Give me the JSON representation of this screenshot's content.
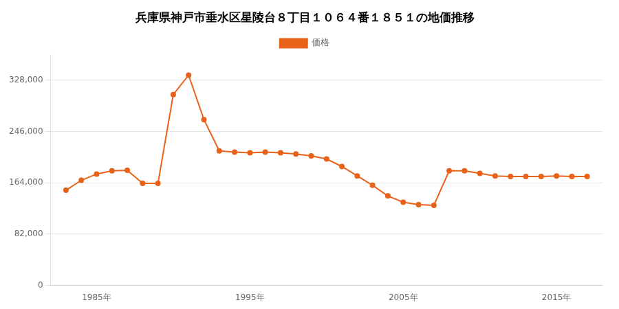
{
  "chart_data": {
    "type": "line",
    "title": "兵庫県神戸市垂水区星陵台８丁目１０６４番１８５１の地価推移",
    "x": [
      1983,
      1984,
      1985,
      1986,
      1987,
      1988,
      1989,
      1990,
      1991,
      1992,
      1993,
      1994,
      1995,
      1996,
      1997,
      1998,
      1999,
      2000,
      2001,
      2002,
      2003,
      2004,
      2005,
      2006,
      2007,
      2008,
      2009,
      2010,
      2011,
      2012,
      2013,
      2014,
      2015,
      2016,
      2017
    ],
    "series": [
      {
        "name": "価格",
        "color": "#E8621A",
        "marker": "circle",
        "values": [
          152000,
          168000,
          178000,
          183000,
          184000,
          163000,
          163000,
          305000,
          336000,
          265000,
          215000,
          213000,
          212000,
          213000,
          212000,
          210000,
          207000,
          202000,
          190000,
          175000,
          160000,
          143000,
          133000,
          129000,
          128000,
          183000,
          183000,
          179000,
          175000,
          174000,
          174000,
          174000,
          175000,
          174000,
          174000
        ]
      }
    ],
    "xlim": [
      1982,
      2018
    ],
    "xticks": [
      {
        "value": 1985,
        "label": "1985年"
      },
      {
        "value": 1995,
        "label": "1995年"
      },
      {
        "value": 2005,
        "label": "2005年"
      },
      {
        "value": 2015,
        "label": "2015年"
      }
    ],
    "ylim": [
      0,
      369000
    ],
    "yticks": [
      0,
      {
        "value": 82000,
        "label": "82,000"
      },
      {
        "value": 164000,
        "label": "164,000"
      },
      {
        "value": 246000,
        "label": "246,000"
      },
      {
        "value": 328000,
        "label": "328,000"
      }
    ],
    "grid": "y",
    "legend": "top"
  }
}
